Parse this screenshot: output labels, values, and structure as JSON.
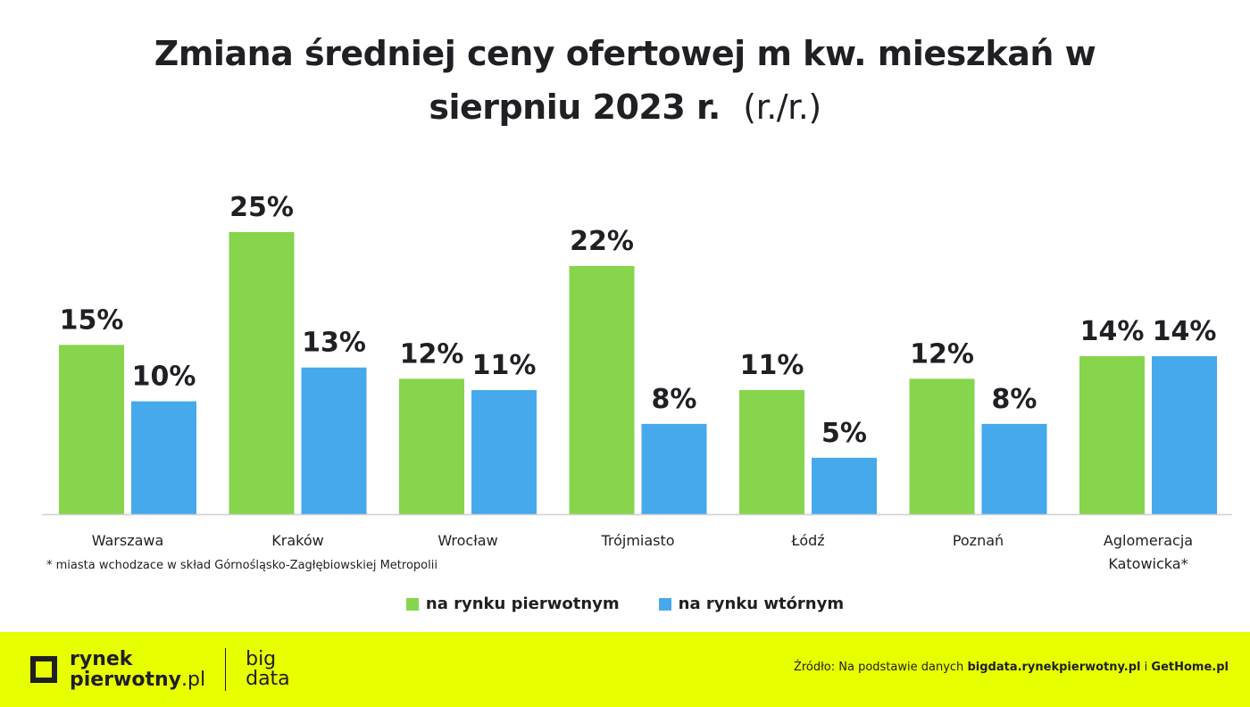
{
  "chart_data": {
    "type": "bar",
    "title_line1": "Zmiana średniej ceny ofertowej m kw. mieszkań w",
    "title_line2": "sierpniu 2023 r.",
    "title_suffix": "(r./r.)",
    "categories": [
      "Warszawa",
      "Kraków",
      "Wrocław",
      "Trójmiasto",
      "Łódź",
      "Poznań",
      "Aglomeracja Katowicka*"
    ],
    "series": [
      {
        "name": "na rynku pierwotnym",
        "color": "#86d54d",
        "values": [
          15,
          25,
          12,
          22,
          11,
          12,
          14
        ]
      },
      {
        "name": "na rynku wtórnym",
        "color": "#46a9ec",
        "values": [
          10,
          13,
          11,
          8,
          5,
          8,
          14
        ]
      }
    ],
    "value_suffix": "%",
    "ylim": [
      0,
      25
    ],
    "grid": false,
    "legend_position": "bottom"
  },
  "footnote": "* miasta wchodzace w skład Górnośląsko-Zagłębiowskiej Metropolii",
  "footer": {
    "logo_text": "rynek pierwotny.pl",
    "logo_line1": "rynek",
    "logo_line2": "pierwotny",
    "logo_tld": ".pl",
    "bigdata_line1": "big",
    "bigdata_line2": "data",
    "source_prefix": "Źródło: Na podstawie danych",
    "source_link1": "bigdata.rynekpierwotny.pl",
    "source_and": "i",
    "source_link2": "GetHome.pl",
    "background": "#e8ff00"
  }
}
